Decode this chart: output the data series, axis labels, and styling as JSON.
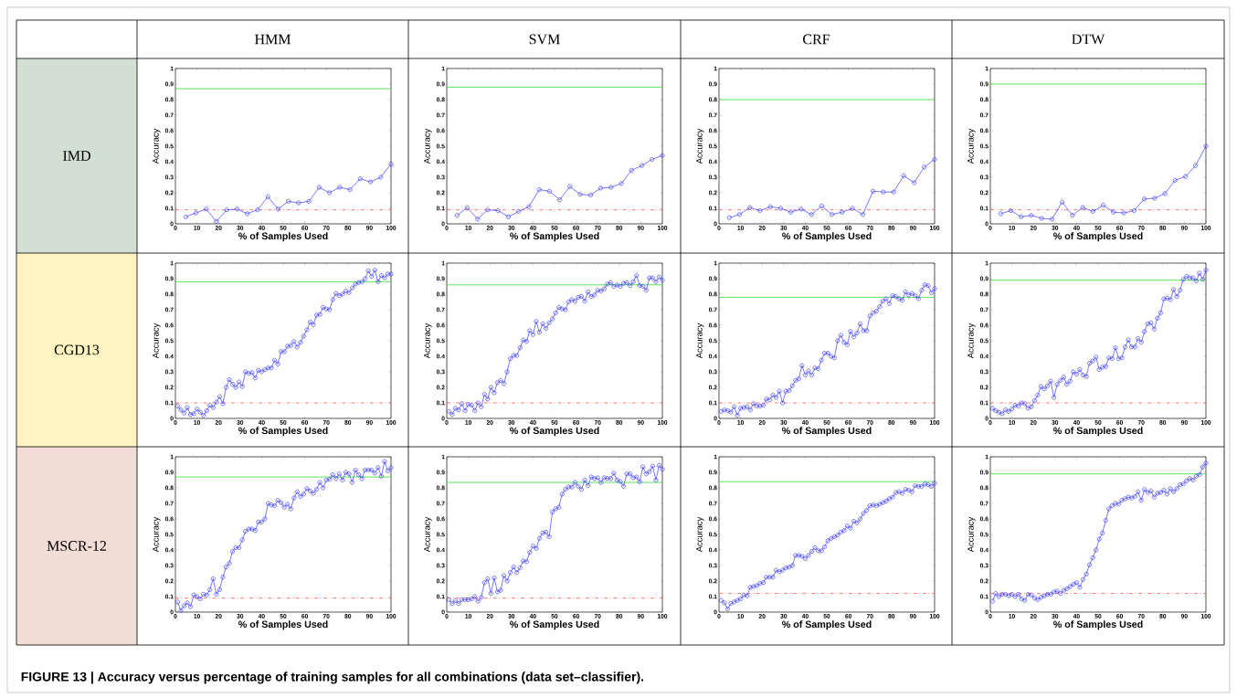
{
  "chart_data": [
    {
      "type": "line",
      "title": "HMM",
      "subtitle": "IMD",
      "xlabel": "% of Samples Used",
      "ylabel": "Accuracy",
      "marker": "circle",
      "xlim": [
        0,
        100
      ],
      "ylim": [
        0,
        1
      ],
      "xticks": [
        0,
        10,
        20,
        30,
        40,
        50,
        60,
        70,
        80,
        90,
        100
      ],
      "yticks": [
        0,
        0.1,
        0.2,
        0.3,
        0.4,
        0.5,
        0.6,
        0.7,
        0.8,
        0.9,
        1
      ],
      "x": [
        4.8,
        9.5,
        14.3,
        19,
        23.8,
        28.6,
        33.3,
        38.1,
        42.9,
        47.6,
        52.4,
        57.1,
        61.9,
        66.7,
        71.4,
        76.2,
        81,
        85.7,
        90.5,
        95.2,
        100
      ],
      "series": [
        {
          "color": "#3333ff",
          "values": [
            0.045,
            0.07,
            0.095,
            0.015,
            0.09,
            0.095,
            0.065,
            0.09,
            0.175,
            0.095,
            0.145,
            0.135,
            0.145,
            0.235,
            0.2,
            0.235,
            0.22,
            0.29,
            0.27,
            0.3,
            0.385
          ]
        }
      ],
      "ref_lines": [
        {
          "axis": "y",
          "value": 0.87,
          "color": "#33dd33",
          "line_style": "solid"
        },
        {
          "axis": "y",
          "value": 0.09,
          "color": "#ff5555",
          "line_style": "dashdot"
        }
      ]
    },
    {
      "type": "line",
      "title": "SVM",
      "xlabel": "% of Samples Used",
      "ylabel": "Accuracy",
      "marker": "circle",
      "xlim": [
        0,
        100
      ],
      "ylim": [
        0,
        1
      ],
      "xticks": [
        0,
        10,
        20,
        30,
        40,
        50,
        60,
        70,
        80,
        90,
        100
      ],
      "yticks": [
        0,
        0.1,
        0.2,
        0.3,
        0.4,
        0.5,
        0.6,
        0.7,
        0.8,
        0.9,
        1
      ],
      "x": [
        4.8,
        9.5,
        14.3,
        19,
        23.8,
        28.6,
        33.3,
        38.1,
        42.9,
        47.6,
        52.4,
        57.1,
        61.9,
        66.7,
        71.4,
        76.2,
        81,
        85.7,
        90.5,
        95.2,
        100
      ],
      "series": [
        {
          "color": "#3333ff",
          "values": [
            0.055,
            0.105,
            0.03,
            0.09,
            0.085,
            0.045,
            0.08,
            0.11,
            0.22,
            0.21,
            0.155,
            0.24,
            0.19,
            0.185,
            0.23,
            0.235,
            0.26,
            0.345,
            0.375,
            0.415,
            0.44
          ]
        }
      ],
      "ref_lines": [
        {
          "axis": "y",
          "value": 0.88,
          "color": "#33dd33",
          "line_style": "solid"
        },
        {
          "axis": "y",
          "value": 0.09,
          "color": "#ff5555",
          "line_style": "dashdot"
        }
      ]
    },
    {
      "type": "line",
      "title": "CRF",
      "xlabel": "% of Samples Used",
      "ylabel": "Accuracy",
      "marker": "circle",
      "xlim": [
        0,
        100
      ],
      "ylim": [
        0,
        1
      ],
      "xticks": [
        0,
        10,
        20,
        30,
        40,
        50,
        60,
        70,
        80,
        90,
        100
      ],
      "yticks": [
        0,
        0.1,
        0.2,
        0.3,
        0.4,
        0.5,
        0.6,
        0.7,
        0.8,
        0.9,
        1
      ],
      "x": [
        4.8,
        9.5,
        14.3,
        19,
        23.8,
        28.6,
        33.3,
        38.1,
        42.9,
        47.6,
        52.4,
        57.1,
        61.9,
        66.7,
        71.4,
        76.2,
        81,
        85.7,
        90.5,
        95.2,
        100
      ],
      "series": [
        {
          "color": "#3333ff",
          "values": [
            0.04,
            0.06,
            0.105,
            0.085,
            0.11,
            0.1,
            0.075,
            0.095,
            0.06,
            0.115,
            0.06,
            0.075,
            0.1,
            0.06,
            0.21,
            0.205,
            0.205,
            0.31,
            0.265,
            0.365,
            0.415
          ]
        }
      ],
      "ref_lines": [
        {
          "axis": "y",
          "value": 0.8,
          "color": "#33dd33",
          "line_style": "solid"
        },
        {
          "axis": "y",
          "value": 0.09,
          "color": "#ff5555",
          "line_style": "dashdot"
        }
      ]
    },
    {
      "type": "line",
      "title": "DTW",
      "xlabel": "% of Samples Used",
      "ylabel": "Accuracy",
      "marker": "circle",
      "xlim": [
        0,
        100
      ],
      "ylim": [
        0,
        1
      ],
      "xticks": [
        0,
        10,
        20,
        30,
        40,
        50,
        60,
        70,
        80,
        90,
        100
      ],
      "yticks": [
        0,
        0.1,
        0.2,
        0.3,
        0.4,
        0.5,
        0.6,
        0.7,
        0.8,
        0.9,
        1
      ],
      "x": [
        4.8,
        9.5,
        14.3,
        19,
        23.8,
        28.6,
        33.3,
        38.1,
        42.9,
        47.6,
        52.4,
        57.1,
        61.9,
        66.7,
        71.4,
        76.2,
        81,
        85.7,
        90.5,
        95.2,
        100
      ],
      "series": [
        {
          "color": "#3333ff",
          "values": [
            0.065,
            0.085,
            0.045,
            0.055,
            0.035,
            0.03,
            0.14,
            0.055,
            0.105,
            0.08,
            0.12,
            0.075,
            0.07,
            0.085,
            0.16,
            0.165,
            0.195,
            0.28,
            0.305,
            0.375,
            0.5
          ]
        }
      ],
      "ref_lines": [
        {
          "axis": "y",
          "value": 0.9,
          "color": "#33dd33",
          "line_style": "solid"
        },
        {
          "axis": "y",
          "value": 0.09,
          "color": "#ff5555",
          "line_style": "dashdot"
        }
      ]
    },
    {
      "type": "line",
      "subtitle": "CGD13",
      "xlabel": "% of Samples Used",
      "ylabel": "Accuracy",
      "marker": "circle",
      "xlim": [
        0,
        100
      ],
      "ylim": [
        0,
        1
      ],
      "xticks": [
        0,
        10,
        20,
        30,
        40,
        50,
        60,
        70,
        80,
        90,
        100
      ],
      "yticks": [
        0,
        0.1,
        0.2,
        0.3,
        0.4,
        0.5,
        0.6,
        0.7,
        0.8,
        0.9,
        1
      ],
      "x": [
        1,
        2.5,
        4,
        5.5,
        7,
        8.5,
        10,
        11.5,
        13,
        14.5,
        16,
        17.5,
        19,
        20.5,
        22,
        23.5,
        25,
        26.5,
        28,
        29.5,
        31,
        32.5,
        34,
        35.5,
        37,
        38.5,
        40,
        41.5,
        43,
        44.5,
        46,
        47.5,
        49,
        50.5,
        52,
        53.5,
        55,
        56.5,
        58,
        59.5,
        61,
        62.5,
        64,
        65.5,
        67,
        68.5,
        70,
        71.5,
        73,
        74.5,
        76,
        77.5,
        79,
        80.5,
        82,
        83.5,
        85,
        86.5,
        88,
        89.5,
        91,
        92.5,
        94,
        95.5,
        97,
        98.5,
        100
      ],
      "series": [
        {
          "color": "#3333ff",
          "values": [
            0.08,
            0.055,
            0.035,
            0.07,
            0.025,
            0.03,
            0.06,
            0.04,
            0.02,
            0.05,
            0.085,
            0.07,
            0.105,
            0.14,
            0.095,
            0.2,
            0.25,
            0.22,
            0.2,
            0.235,
            0.205,
            0.3,
            0.29,
            0.295,
            0.26,
            0.31,
            0.3,
            0.315,
            0.325,
            0.325,
            0.375,
            0.35,
            0.43,
            0.43,
            0.465,
            0.47,
            0.495,
            0.46,
            0.49,
            0.53,
            0.57,
            0.62,
            0.605,
            0.665,
            0.67,
            0.715,
            0.705,
            0.7,
            0.765,
            0.805,
            0.79,
            0.8,
            0.82,
            0.81,
            0.84,
            0.865,
            0.875,
            0.88,
            0.9,
            0.95,
            0.915,
            0.955,
            0.88,
            0.92,
            0.905,
            0.93,
            0.93
          ]
        }
      ],
      "ref_lines": [
        {
          "axis": "y",
          "value": 0.88,
          "color": "#33dd33",
          "line_style": "solid"
        },
        {
          "axis": "y",
          "value": 0.1,
          "color": "#ff5555",
          "line_style": "dashdot"
        }
      ]
    },
    {
      "type": "line",
      "xlabel": "% of Samples Used",
      "ylabel": "Accuracy",
      "marker": "circle",
      "xlim": [
        0,
        100
      ],
      "ylim": [
        0,
        1
      ],
      "xticks": [
        0,
        10,
        20,
        30,
        40,
        50,
        60,
        70,
        80,
        90,
        100
      ],
      "yticks": [
        0,
        0.1,
        0.2,
        0.3,
        0.4,
        0.5,
        0.6,
        0.7,
        0.8,
        0.9,
        1
      ],
      "x": [
        1,
        2.5,
        4,
        5.5,
        7,
        8.5,
        10,
        11.5,
        13,
        14.5,
        16,
        17.5,
        19,
        20.5,
        22,
        23.5,
        25,
        26.5,
        28,
        29.5,
        31,
        32.5,
        34,
        35.5,
        37,
        38.5,
        40,
        41.5,
        43,
        44.5,
        46,
        47.5,
        49,
        50.5,
        52,
        53.5,
        55,
        56.5,
        58,
        59.5,
        61,
        62.5,
        64,
        65.5,
        67,
        68.5,
        70,
        71.5,
        73,
        74.5,
        76,
        77.5,
        79,
        80.5,
        82,
        83.5,
        85,
        86.5,
        88,
        89.5,
        91,
        92.5,
        94,
        95.5,
        97,
        98.5,
        100
      ],
      "series": [
        {
          "color": "#3333ff",
          "values": [
            0.045,
            0.025,
            0.065,
            0.055,
            0.095,
            0.05,
            0.09,
            0.085,
            0.05,
            0.1,
            0.075,
            0.155,
            0.125,
            0.2,
            0.165,
            0.23,
            0.245,
            0.225,
            0.3,
            0.385,
            0.405,
            0.405,
            0.455,
            0.505,
            0.495,
            0.565,
            0.54,
            0.625,
            0.555,
            0.61,
            0.58,
            0.615,
            0.64,
            0.68,
            0.715,
            0.705,
            0.7,
            0.75,
            0.765,
            0.755,
            0.78,
            0.785,
            0.755,
            0.815,
            0.785,
            0.795,
            0.825,
            0.82,
            0.835,
            0.865,
            0.875,
            0.85,
            0.86,
            0.85,
            0.87,
            0.875,
            0.855,
            0.88,
            0.92,
            0.855,
            0.85,
            0.825,
            0.905,
            0.905,
            0.88,
            0.91,
            0.89
          ]
        }
      ],
      "ref_lines": [
        {
          "axis": "y",
          "value": 0.86,
          "color": "#33dd33",
          "line_style": "solid"
        },
        {
          "axis": "y",
          "value": 0.1,
          "color": "#ff5555",
          "line_style": "dashdot"
        }
      ]
    },
    {
      "type": "line",
      "xlabel": "% of Samples Used",
      "ylabel": "Accuracy",
      "marker": "circle",
      "xlim": [
        0,
        100
      ],
      "ylim": [
        0,
        1
      ],
      "xticks": [
        0,
        10,
        20,
        30,
        40,
        50,
        60,
        70,
        80,
        90,
        100
      ],
      "yticks": [
        0,
        0.1,
        0.2,
        0.3,
        0.4,
        0.5,
        0.6,
        0.7,
        0.8,
        0.9,
        1
      ],
      "x": [
        1,
        2.5,
        4,
        5.5,
        7,
        8.5,
        10,
        11.5,
        13,
        14.5,
        16,
        17.5,
        19,
        20.5,
        22,
        23.5,
        25,
        26.5,
        28,
        29.5,
        31,
        32.5,
        34,
        35.5,
        37,
        38.5,
        40,
        41.5,
        43,
        44.5,
        46,
        47.5,
        49,
        50.5,
        52,
        53.5,
        55,
        56.5,
        58,
        59.5,
        61,
        62.5,
        64,
        65.5,
        67,
        68.5,
        70,
        71.5,
        73,
        74.5,
        76,
        77.5,
        79,
        80.5,
        82,
        83.5,
        85,
        86.5,
        88,
        89.5,
        91,
        92.5,
        94,
        95.5,
        97,
        98.5,
        100
      ],
      "series": [
        {
          "color": "#3333ff",
          "values": [
            0.045,
            0.055,
            0.05,
            0.04,
            0.075,
            0.02,
            0.065,
            0.07,
            0.075,
            0.055,
            0.095,
            0.08,
            0.08,
            0.085,
            0.125,
            0.12,
            0.15,
            0.135,
            0.175,
            0.1,
            0.175,
            0.18,
            0.21,
            0.245,
            0.255,
            0.34,
            0.28,
            0.305,
            0.28,
            0.325,
            0.32,
            0.375,
            0.42,
            0.42,
            0.4,
            0.39,
            0.5,
            0.535,
            0.49,
            0.475,
            0.56,
            0.525,
            0.55,
            0.61,
            0.565,
            0.565,
            0.66,
            0.68,
            0.69,
            0.72,
            0.755,
            0.77,
            0.74,
            0.79,
            0.785,
            0.77,
            0.76,
            0.815,
            0.795,
            0.805,
            0.79,
            0.77,
            0.825,
            0.86,
            0.855,
            0.81,
            0.835
          ]
        }
      ],
      "ref_lines": [
        {
          "axis": "y",
          "value": 0.78,
          "color": "#33dd33",
          "line_style": "solid"
        },
        {
          "axis": "y",
          "value": 0.1,
          "color": "#ff5555",
          "line_style": "dashdot"
        }
      ]
    },
    {
      "type": "line",
      "xlabel": "% of Samples Used",
      "ylabel": "Accuracy",
      "marker": "circle",
      "xlim": [
        0,
        100
      ],
      "ylim": [
        0,
        1
      ],
      "xticks": [
        0,
        10,
        20,
        30,
        40,
        50,
        60,
        70,
        80,
        90,
        100
      ],
      "yticks": [
        0,
        0.1,
        0.2,
        0.3,
        0.4,
        0.5,
        0.6,
        0.7,
        0.8,
        0.9,
        1
      ],
      "x": [
        1,
        2.5,
        4,
        5.5,
        7,
        8.5,
        10,
        11.5,
        13,
        14.5,
        16,
        17.5,
        19,
        20.5,
        22,
        23.5,
        25,
        26.5,
        28,
        29.5,
        31,
        32.5,
        34,
        35.5,
        37,
        38.5,
        40,
        41.5,
        43,
        44.5,
        46,
        47.5,
        49,
        50.5,
        52,
        53.5,
        55,
        56.5,
        58,
        59.5,
        61,
        62.5,
        64,
        65.5,
        67,
        68.5,
        70,
        71.5,
        73,
        74.5,
        76,
        77.5,
        79,
        80.5,
        82,
        83.5,
        85,
        86.5,
        88,
        89.5,
        91,
        92.5,
        94,
        95.5,
        97,
        98.5,
        100
      ],
      "series": [
        {
          "color": "#3333ff",
          "values": [
            0.065,
            0.05,
            0.04,
            0.03,
            0.055,
            0.045,
            0.06,
            0.085,
            0.08,
            0.1,
            0.095,
            0.065,
            0.075,
            0.115,
            0.15,
            0.205,
            0.19,
            0.21,
            0.24,
            0.135,
            0.22,
            0.245,
            0.265,
            0.22,
            0.24,
            0.3,
            0.285,
            0.315,
            0.28,
            0.27,
            0.355,
            0.37,
            0.395,
            0.315,
            0.33,
            0.335,
            0.39,
            0.385,
            0.455,
            0.385,
            0.39,
            0.46,
            0.505,
            0.46,
            0.46,
            0.515,
            0.49,
            0.56,
            0.61,
            0.615,
            0.575,
            0.645,
            0.68,
            0.77,
            0.775,
            0.765,
            0.83,
            0.785,
            0.825,
            0.895,
            0.915,
            0.905,
            0.905,
            0.885,
            0.935,
            0.895,
            0.955
          ]
        }
      ],
      "ref_lines": [
        {
          "axis": "y",
          "value": 0.89,
          "color": "#33dd33",
          "line_style": "solid"
        },
        {
          "axis": "y",
          "value": 0.1,
          "color": "#ff5555",
          "line_style": "dashdot"
        }
      ]
    },
    {
      "type": "line",
      "subtitle": "MSCR-12",
      "xlabel": "% of Samples Used",
      "ylabel": "Accuracy",
      "marker": "circle",
      "xlim": [
        0,
        100
      ],
      "ylim": [
        0,
        1
      ],
      "xticks": [
        0,
        10,
        20,
        30,
        40,
        50,
        60,
        70,
        80,
        90,
        100
      ],
      "yticks": [
        0,
        0.1,
        0.2,
        0.3,
        0.4,
        0.5,
        0.6,
        0.7,
        0.8,
        0.9,
        1
      ],
      "x": [
        1,
        2.5,
        4,
        5.5,
        7,
        8.5,
        10,
        11.5,
        13,
        14.5,
        16,
        17.5,
        19,
        20.5,
        22,
        23.5,
        25,
        26.5,
        28,
        29.5,
        31,
        32.5,
        34,
        35.5,
        37,
        38.5,
        40,
        41.5,
        43,
        44.5,
        46,
        47.5,
        49,
        50.5,
        52,
        53.5,
        55,
        56.5,
        58,
        59.5,
        61,
        62.5,
        64,
        65.5,
        67,
        68.5,
        70,
        71.5,
        73,
        74.5,
        76,
        77.5,
        79,
        80.5,
        82,
        83.5,
        85,
        86.5,
        88,
        89.5,
        91,
        92.5,
        94,
        95.5,
        97,
        98.5,
        100
      ],
      "series": [
        {
          "color": "#3333ff",
          "values": [
            0.065,
            0.01,
            0.04,
            0.06,
            0.035,
            0.11,
            0.1,
            0.085,
            0.115,
            0.11,
            0.145,
            0.215,
            0.115,
            0.145,
            0.225,
            0.29,
            0.315,
            0.39,
            0.415,
            0.415,
            0.465,
            0.52,
            0.535,
            0.535,
            0.525,
            0.58,
            0.58,
            0.6,
            0.7,
            0.69,
            0.685,
            0.72,
            0.705,
            0.675,
            0.695,
            0.665,
            0.735,
            0.775,
            0.745,
            0.76,
            0.795,
            0.78,
            0.765,
            0.79,
            0.835,
            0.8,
            0.85,
            0.855,
            0.885,
            0.86,
            0.89,
            0.85,
            0.9,
            0.89,
            0.835,
            0.915,
            0.885,
            0.86,
            0.915,
            0.915,
            0.915,
            0.895,
            0.93,
            0.875,
            0.97,
            0.91,
            0.93
          ]
        }
      ],
      "ref_lines": [
        {
          "axis": "y",
          "value": 0.87,
          "color": "#33dd33",
          "line_style": "solid"
        },
        {
          "axis": "y",
          "value": 0.09,
          "color": "#ff5555",
          "line_style": "dashdot"
        }
      ]
    },
    {
      "type": "line",
      "xlabel": "% of Samples Used",
      "ylabel": "Accuracy",
      "marker": "circle",
      "xlim": [
        0,
        100
      ],
      "ylim": [
        0,
        1
      ],
      "xticks": [
        0,
        10,
        20,
        30,
        40,
        50,
        60,
        70,
        80,
        90,
        100
      ],
      "yticks": [
        0,
        0.1,
        0.2,
        0.3,
        0.4,
        0.5,
        0.6,
        0.7,
        0.8,
        0.9,
        1
      ],
      "x": [
        1,
        2.5,
        4,
        5.5,
        7,
        8.5,
        10,
        11.5,
        13,
        14.5,
        16,
        17.5,
        19,
        20.5,
        22,
        23.5,
        25,
        26.5,
        28,
        29.5,
        31,
        32.5,
        34,
        35.5,
        37,
        38.5,
        40,
        41.5,
        43,
        44.5,
        46,
        47.5,
        49,
        50.5,
        52,
        53.5,
        55,
        56.5,
        58,
        59.5,
        61,
        62.5,
        64,
        65.5,
        67,
        68.5,
        70,
        71.5,
        73,
        74.5,
        76,
        77.5,
        79,
        80.5,
        82,
        83.5,
        85,
        86.5,
        88,
        89.5,
        91,
        92.5,
        94,
        95.5,
        97,
        98.5,
        100
      ],
      "series": [
        {
          "color": "#3333ff",
          "values": [
            0.08,
            0.055,
            0.075,
            0.055,
            0.08,
            0.08,
            0.08,
            0.085,
            0.1,
            0.07,
            0.095,
            0.19,
            0.215,
            0.12,
            0.22,
            0.13,
            0.14,
            0.235,
            0.2,
            0.255,
            0.29,
            0.255,
            0.285,
            0.33,
            0.325,
            0.385,
            0.425,
            0.41,
            0.475,
            0.51,
            0.515,
            0.485,
            0.645,
            0.665,
            0.675,
            0.76,
            0.79,
            0.805,
            0.805,
            0.835,
            0.81,
            0.79,
            0.85,
            0.815,
            0.87,
            0.86,
            0.865,
            0.835,
            0.865,
            0.86,
            0.86,
            0.895,
            0.85,
            0.84,
            0.81,
            0.89,
            0.89,
            0.865,
            0.87,
            0.84,
            0.935,
            0.89,
            0.905,
            0.94,
            0.85,
            0.945,
            0.92
          ]
        }
      ],
      "ref_lines": [
        {
          "axis": "y",
          "value": 0.835,
          "color": "#33dd33",
          "line_style": "solid"
        },
        {
          "axis": "y",
          "value": 0.09,
          "color": "#ff5555",
          "line_style": "dashdot"
        }
      ]
    },
    {
      "type": "line",
      "xlabel": "% of Samples Used",
      "ylabel": "Accuracy",
      "marker": "circle",
      "xlim": [
        0,
        100
      ],
      "ylim": [
        0,
        1
      ],
      "xticks": [
        0,
        10,
        20,
        30,
        40,
        50,
        60,
        70,
        80,
        90,
        100
      ],
      "yticks": [
        0,
        0.1,
        0.2,
        0.3,
        0.4,
        0.5,
        0.6,
        0.7,
        0.8,
        0.9,
        1
      ],
      "x": [
        1,
        2.5,
        4,
        5.5,
        7,
        8.5,
        10,
        11.5,
        13,
        14.5,
        16,
        17.5,
        19,
        20.5,
        22,
        23.5,
        25,
        26.5,
        28,
        29.5,
        31,
        32.5,
        34,
        35.5,
        37,
        38.5,
        40,
        41.5,
        43,
        44.5,
        46,
        47.5,
        49,
        50.5,
        52,
        53.5,
        55,
        56.5,
        58,
        59.5,
        61,
        62.5,
        64,
        65.5,
        67,
        68.5,
        70,
        71.5,
        73,
        74.5,
        76,
        77.5,
        79,
        80.5,
        82,
        83.5,
        85,
        86.5,
        88,
        89.5,
        91,
        92.5,
        94,
        95.5,
        97,
        98.5,
        100
      ],
      "series": [
        {
          "color": "#3333ff",
          "values": [
            0.075,
            0.06,
            0.02,
            0.055,
            0.065,
            0.075,
            0.085,
            0.11,
            0.105,
            0.16,
            0.165,
            0.17,
            0.185,
            0.19,
            0.225,
            0.225,
            0.225,
            0.27,
            0.26,
            0.27,
            0.285,
            0.29,
            0.3,
            0.365,
            0.365,
            0.36,
            0.345,
            0.365,
            0.39,
            0.415,
            0.395,
            0.395,
            0.42,
            0.46,
            0.475,
            0.485,
            0.495,
            0.515,
            0.525,
            0.555,
            0.54,
            0.585,
            0.575,
            0.6,
            0.635,
            0.655,
            0.685,
            0.69,
            0.685,
            0.695,
            0.705,
            0.715,
            0.73,
            0.74,
            0.77,
            0.775,
            0.765,
            0.79,
            0.785,
            0.775,
            0.815,
            0.81,
            0.81,
            0.825,
            0.82,
            0.81,
            0.83
          ]
        }
      ],
      "ref_lines": [
        {
          "axis": "y",
          "value": 0.84,
          "color": "#33dd33",
          "line_style": "solid"
        },
        {
          "axis": "y",
          "value": 0.12,
          "color": "#ff5555",
          "line_style": "dashdot"
        }
      ]
    },
    {
      "type": "line",
      "xlabel": "% of Samples Used",
      "ylabel": "Accuracy",
      "marker": "circle",
      "xlim": [
        0,
        100
      ],
      "ylim": [
        0,
        1
      ],
      "xticks": [
        0,
        10,
        20,
        30,
        40,
        50,
        60,
        70,
        80,
        90,
        100
      ],
      "yticks": [
        0,
        0.1,
        0.2,
        0.3,
        0.4,
        0.5,
        0.6,
        0.7,
        0.8,
        0.9,
        1
      ],
      "x": [
        1,
        2.5,
        4,
        5.5,
        7,
        8.5,
        10,
        11.5,
        13,
        14.5,
        16,
        17.5,
        19,
        20.5,
        22,
        23.5,
        25,
        26.5,
        28,
        29.5,
        31,
        32.5,
        34,
        35.5,
        37,
        38.5,
        40,
        41.5,
        43,
        44.5,
        46,
        47.5,
        49,
        50.5,
        52,
        53.5,
        55,
        56.5,
        58,
        59.5,
        61,
        62.5,
        64,
        65.5,
        67,
        68.5,
        70,
        71.5,
        73,
        74.5,
        76,
        77.5,
        79,
        80.5,
        82,
        83.5,
        85,
        86.5,
        88,
        89.5,
        91,
        92.5,
        94,
        95.5,
        97,
        98.5,
        100
      ],
      "series": [
        {
          "color": "#3333ff",
          "values": [
            0.07,
            0.12,
            0.1,
            0.115,
            0.115,
            0.105,
            0.115,
            0.1,
            0.115,
            0.085,
            0.075,
            0.115,
            0.11,
            0.09,
            0.08,
            0.095,
            0.105,
            0.115,
            0.115,
            0.13,
            0.135,
            0.12,
            0.14,
            0.15,
            0.165,
            0.18,
            0.19,
            0.16,
            0.21,
            0.245,
            0.305,
            0.35,
            0.4,
            0.47,
            0.51,
            0.59,
            0.665,
            0.685,
            0.7,
            0.695,
            0.72,
            0.73,
            0.74,
            0.735,
            0.745,
            0.775,
            0.72,
            0.79,
            0.77,
            0.78,
            0.74,
            0.765,
            0.77,
            0.785,
            0.76,
            0.795,
            0.775,
            0.795,
            0.82,
            0.825,
            0.845,
            0.86,
            0.85,
            0.875,
            0.885,
            0.935,
            0.96
          ]
        }
      ],
      "ref_lines": [
        {
          "axis": "y",
          "value": 0.89,
          "color": "#33dd33",
          "line_style": "solid"
        },
        {
          "axis": "y",
          "value": 0.12,
          "color": "#ff5555",
          "line_style": "dashdot"
        }
      ],
      "annotations": [
        "FIGURE 13 | Accuracy versus percentage of training samples for all combinations (data set–classifier)."
      ]
    }
  ]
}
